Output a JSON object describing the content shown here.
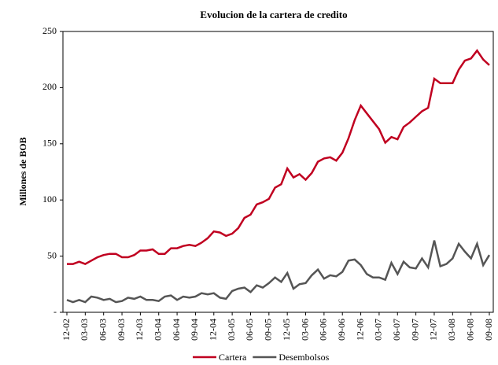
{
  "chart_data": {
    "type": "line",
    "title": "Evolucion de la cartera de credito",
    "y_label": "Millones de BOB",
    "categories": [
      "12-02",
      null,
      null,
      "03-03",
      null,
      null,
      "06-03",
      null,
      null,
      "09-03",
      null,
      null,
      "12-03",
      null,
      null,
      "03-04",
      null,
      null,
      "06-04",
      null,
      null,
      "09-04",
      null,
      null,
      "12-04",
      null,
      null,
      "03-05",
      null,
      null,
      "06-05",
      null,
      null,
      "09-05",
      null,
      null,
      "12-05",
      null,
      null,
      "03-06",
      null,
      null,
      "06-06",
      null,
      null,
      "09-06",
      null,
      null,
      "12-06",
      null,
      null,
      "03-07",
      null,
      null,
      "06-07",
      null,
      null,
      "09-07",
      null,
      null,
      "12-07",
      null,
      null,
      "03-08",
      null,
      null,
      "06-08",
      null,
      null,
      "09-08"
    ],
    "series": [
      {
        "name": "Cartera",
        "color": "#c00020",
        "values": [
          43,
          43,
          45,
          43,
          46,
          49,
          51,
          52,
          52,
          49,
          49,
          51,
          55,
          55,
          56,
          52,
          52,
          57,
          57,
          59,
          60,
          59,
          62,
          66,
          72,
          71,
          68,
          70,
          75,
          84,
          87,
          96,
          98,
          101,
          111,
          114,
          128,
          120,
          123,
          118,
          124,
          134,
          137,
          138,
          135,
          142,
          155,
          171,
          184,
          177,
          170,
          163,
          151,
          156,
          154,
          165,
          169,
          174,
          179,
          182,
          208,
          204,
          204,
          204,
          216,
          224,
          226,
          233,
          225,
          220
        ]
      },
      {
        "name": "Desembolsos",
        "color": "#555555",
        "values": [
          11,
          9,
          11,
          9,
          14,
          13,
          11,
          12,
          9,
          10,
          13,
          12,
          14,
          11,
          11,
          10,
          14,
          15,
          11,
          14,
          13,
          14,
          17,
          16,
          17,
          13,
          12,
          19,
          21,
          22,
          18,
          24,
          22,
          26,
          31,
          27,
          35,
          21,
          25,
          26,
          33,
          38,
          30,
          33,
          32,
          36,
          46,
          47,
          42,
          34,
          31,
          31,
          29,
          44,
          34,
          45,
          40,
          39,
          48,
          40,
          64,
          41,
          43,
          48,
          61,
          54,
          48,
          61,
          42,
          51
        ]
      }
    ],
    "ylim": [
      0,
      250
    ],
    "yticks": [
      {
        "value": 0,
        "label": "-"
      },
      50,
      100,
      150,
      200,
      250
    ],
    "legend": "bottom"
  }
}
